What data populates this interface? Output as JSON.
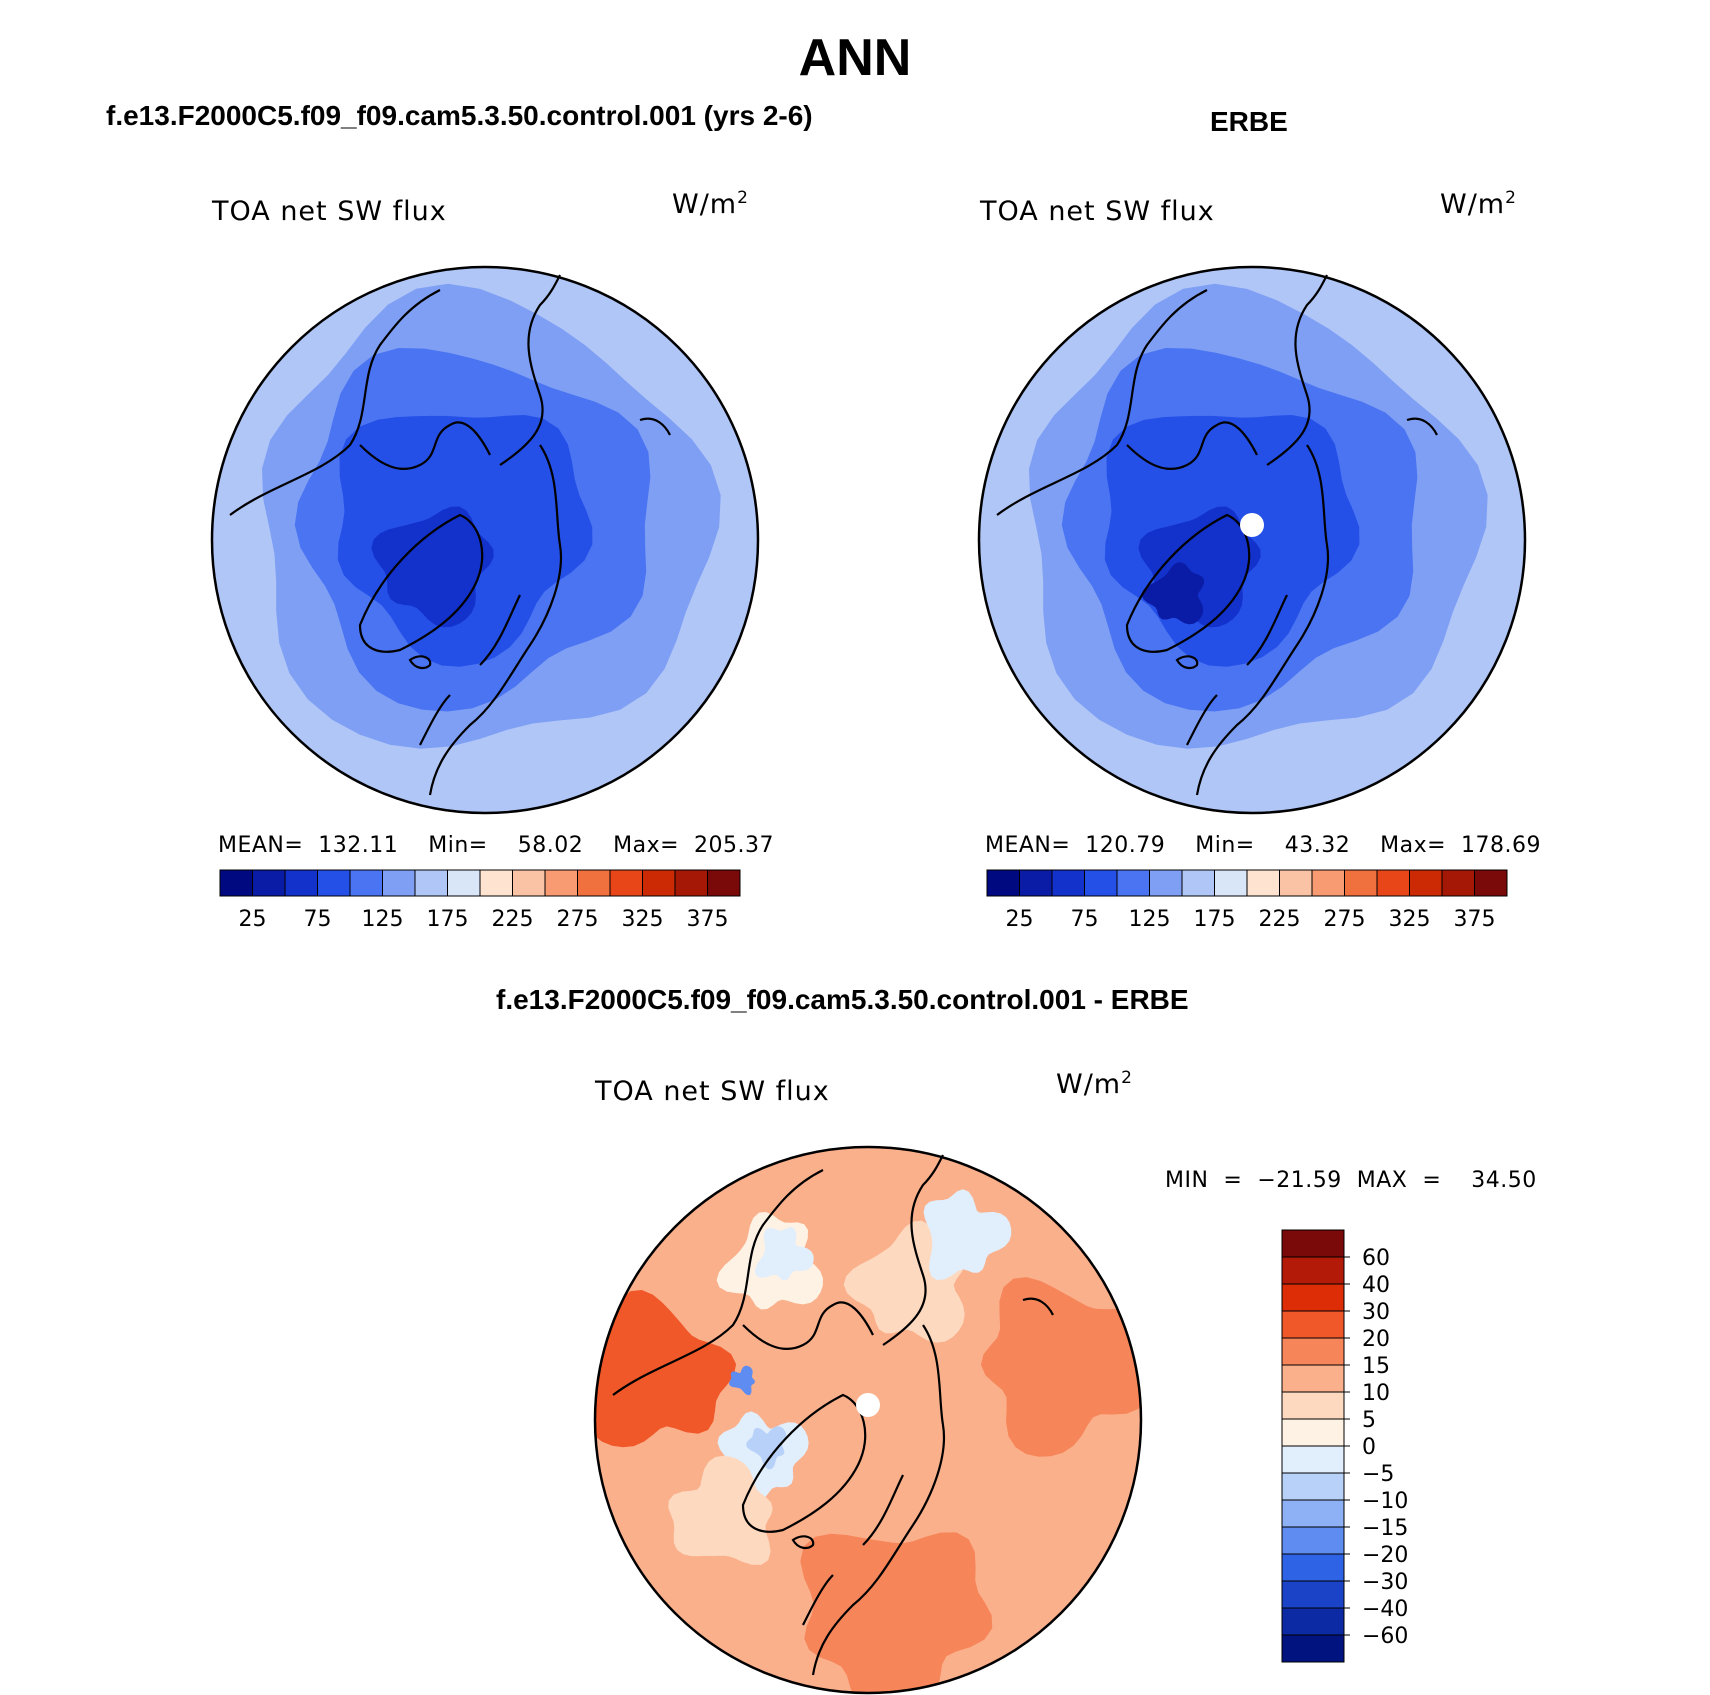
{
  "main_title": "ANN",
  "panels": [
    {
      "title": "f.e13.F2000C5.f09_f09.cam5.3.50.control.001 (yrs 2-6)",
      "variable": "TOA net SW flux",
      "units_base": "W/m",
      "units_exp": "2",
      "stats": "MEAN=  132.11    Min=    58.02    Max=  205.37"
    },
    {
      "title": "ERBE",
      "variable": "TOA net SW flux",
      "units_base": "W/m",
      "units_exp": "2",
      "stats": "MEAN=  120.79    Min=    43.32    Max=  178.69"
    },
    {
      "title": "f.e13.F2000C5.f09_f09.cam5.3.50.control.001 - ERBE",
      "variable": "TOA net SW flux",
      "units_base": "W/m",
      "units_exp": "2",
      "stats": "MIN  =  −21.59  MAX  =    34.50"
    }
  ],
  "colorbar_horizontal": {
    "colors": [
      "#00097f",
      "#0a1ca6",
      "#1331cb",
      "#2550e8",
      "#4a74f2",
      "#7f9ff4",
      "#b0c6f7",
      "#d9e6f8",
      "#fde3d0",
      "#fbc3a6",
      "#f99b72",
      "#f0703e",
      "#e84618",
      "#cc2a05",
      "#a41805",
      "#7a0909"
    ],
    "labels": [
      "25",
      "75",
      "125",
      "175",
      "225",
      "275",
      "325",
      "375"
    ]
  },
  "colorbar_vertical": {
    "colors": [
      "#7a0909",
      "#b31a07",
      "#dc2d07",
      "#f0582a",
      "#f6855a",
      "#fbb08c",
      "#fdd9c0",
      "#fef2e4",
      "#e1eefc",
      "#b8d1f9",
      "#8db1f4",
      "#5e8cf0",
      "#2f63e6",
      "#1a43c8",
      "#0d2aa5",
      "#01137f"
    ],
    "labels": [
      "60",
      "40",
      "30",
      "20",
      "15",
      "10",
      "5",
      "0",
      "−5",
      "−10",
      "−15",
      "−20",
      "−30",
      "−40",
      "−60"
    ]
  },
  "map_colors": {
    "model": [
      "#b0c6f7",
      "#7f9ff4",
      "#4a74f2",
      "#2550e8",
      "#1331cb"
    ],
    "obs": [
      "#b0c6f7",
      "#7f9ff4",
      "#4a74f2",
      "#2550e8",
      "#1331cb",
      "#0a1ca6"
    ],
    "diff": [
      "#fdd9c0",
      "#fbb08c",
      "#f6855a",
      "#f0582a",
      "#fef2e4",
      "#e1eefc",
      "#b8d1f9",
      "#5e8cf0"
    ]
  }
}
